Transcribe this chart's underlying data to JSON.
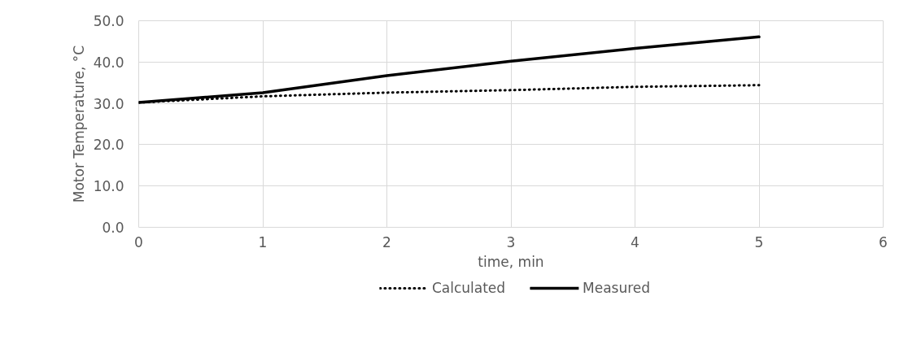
{
  "chart_data": {
    "type": "line",
    "xlabel": "time, min",
    "ylabel": "Motor Temperature, °C",
    "x": [
      0,
      1,
      2,
      3,
      4,
      5
    ],
    "series": [
      {
        "name": "Calculated",
        "color": "#000000",
        "line_style": "dotted",
        "values": [
          30.2,
          31.7,
          32.6,
          33.2,
          34.0,
          34.4
        ]
      },
      {
        "name": "Measured",
        "color": "#000000",
        "line_style": "solid",
        "values": [
          30.2,
          32.6,
          36.7,
          40.2,
          43.3,
          46.1
        ]
      }
    ],
    "xlim": [
      0,
      6
    ],
    "xticks": [
      0,
      1,
      2,
      3,
      4,
      5,
      6
    ],
    "ylim": [
      0,
      50
    ],
    "yticks": [
      {
        "value": 0,
        "label": "0.0"
      },
      {
        "value": 10,
        "label": "10.0"
      },
      {
        "value": 20,
        "label": "20.0"
      },
      {
        "value": 30,
        "label": "30.0"
      },
      {
        "value": 40,
        "label": "40.0"
      },
      {
        "value": 50,
        "label": "50.0"
      }
    ],
    "grid": true,
    "legend": "bottom",
    "marker": "none"
  }
}
